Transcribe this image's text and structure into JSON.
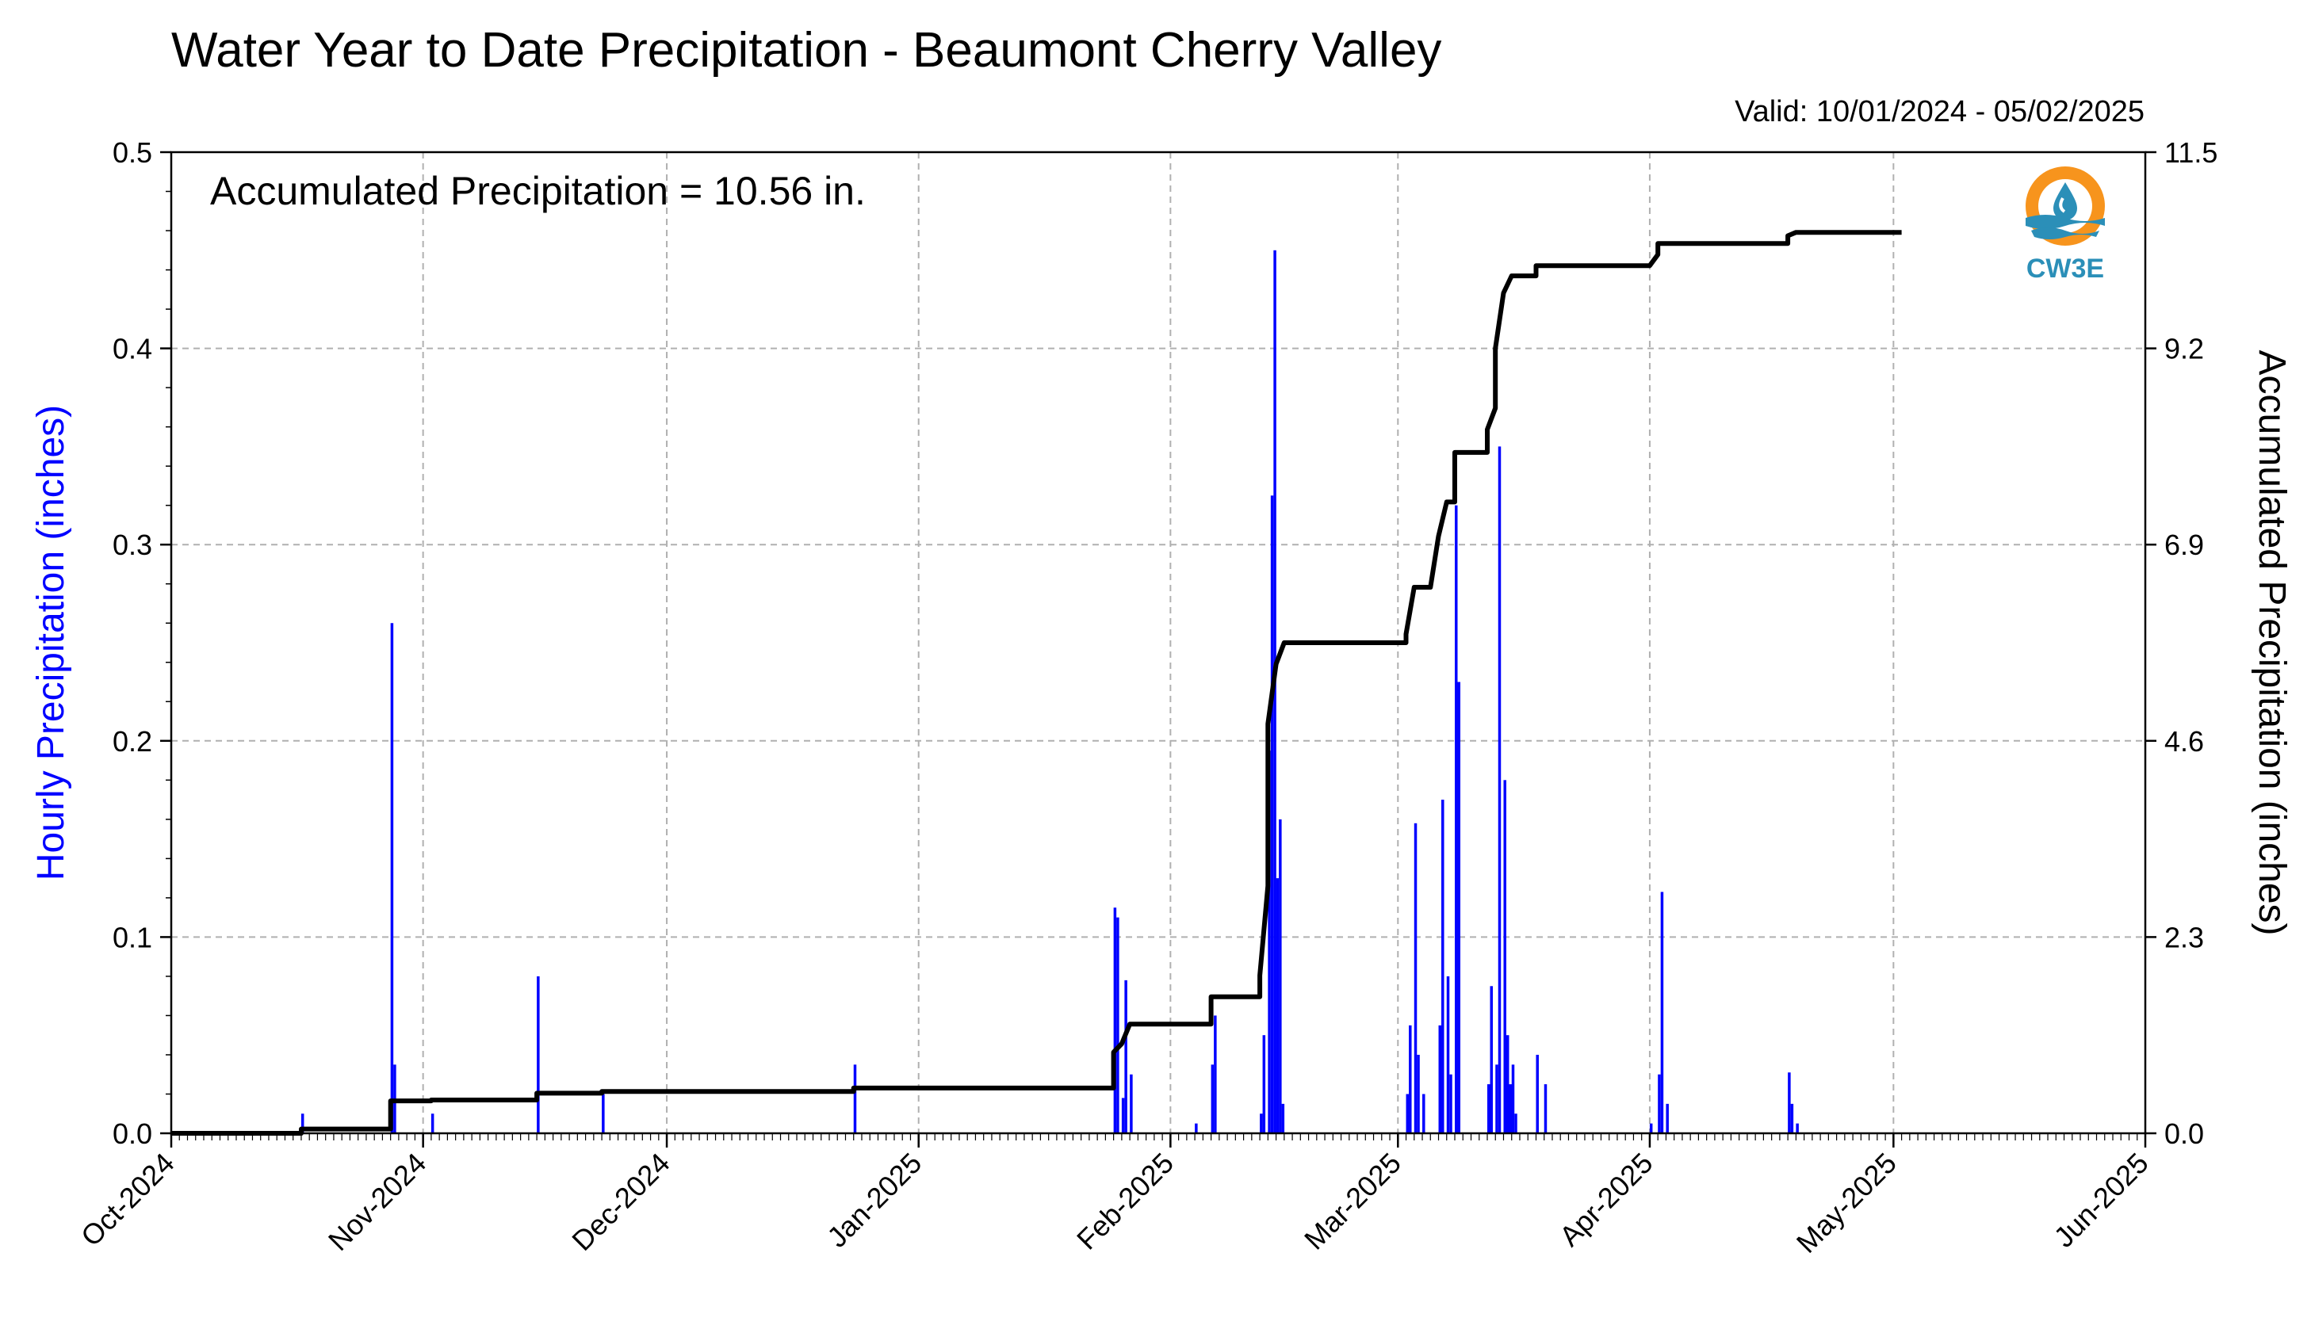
{
  "header": {
    "title": "Water Year to Date Precipitation - Beaumont Cherry Valley",
    "valid": "Valid: 10/01/2024 - 05/02/2025"
  },
  "logo": {
    "text": "CW3E",
    "icon": "droplet-water-logo-icon",
    "colors": {
      "ring": "#f7941d",
      "wave": "#2b8fb8"
    }
  },
  "chart_data": {
    "type": "bar+line",
    "annotation": "Accumulated Precipitation = 10.56 in.",
    "ylabel_left": "Hourly Precipitation (inches)",
    "ylabel_right": "Accumulated Precipitation (inches)",
    "ylim_left": [
      0,
      0.5
    ],
    "ylim_right": [
      0,
      11.5
    ],
    "yticks_left": [
      "0.0",
      "0.1",
      "0.2",
      "0.3",
      "0.4",
      "0.5"
    ],
    "yticks_right": [
      "0.0",
      "2.3",
      "4.6",
      "6.9",
      "9.2",
      "11.5"
    ],
    "xlim": [
      "2024-10-01",
      "2025-06-01"
    ],
    "xticks": [
      {
        "date": "2024-10-01",
        "label": "Oct-2024"
      },
      {
        "date": "2024-11-01",
        "label": "Nov-2024"
      },
      {
        "date": "2024-12-01",
        "label": "Dec-2024"
      },
      {
        "date": "2025-01-01",
        "label": "Jan-2025"
      },
      {
        "date": "2025-02-01",
        "label": "Feb-2025"
      },
      {
        "date": "2025-03-01",
        "label": "Mar-2025"
      },
      {
        "date": "2025-04-01",
        "label": "Apr-2025"
      },
      {
        "date": "2025-05-01",
        "label": "May-2025"
      },
      {
        "date": "2025-06-01",
        "label": "Jun-2025"
      }
    ],
    "grid": true,
    "colors": {
      "hourly": "#0000ff",
      "accumulated": "#000000",
      "grid": "#b0b0b0"
    },
    "series": [
      {
        "name": "Hourly Precipitation",
        "type": "bar",
        "points": [
          [
            "2024-10-17",
            0.01
          ],
          [
            "2024-10-28",
            0.26
          ],
          [
            "2024-10-28",
            0.035
          ],
          [
            "2024-11-02",
            0.01
          ],
          [
            "2024-11-15",
            0.08
          ],
          [
            "2024-11-23",
            0.02
          ],
          [
            "2024-12-24",
            0.035
          ],
          [
            "2025-01-25",
            0.115
          ],
          [
            "2025-01-25",
            0.11
          ],
          [
            "2025-01-26",
            0.018
          ],
          [
            "2025-01-26",
            0.078
          ],
          [
            "2025-01-27",
            0.03
          ],
          [
            "2025-02-04",
            0.005
          ],
          [
            "2025-02-06",
            0.035
          ],
          [
            "2025-02-06",
            0.06
          ],
          [
            "2025-02-12",
            0.01
          ],
          [
            "2025-02-12",
            0.05
          ],
          [
            "2025-02-13",
            0.195
          ],
          [
            "2025-02-13",
            0.325
          ],
          [
            "2025-02-13",
            0.45
          ],
          [
            "2025-02-14",
            0.13
          ],
          [
            "2025-02-14",
            0.16
          ],
          [
            "2025-02-14",
            0.015
          ],
          [
            "2025-03-02",
            0.02
          ],
          [
            "2025-03-02",
            0.055
          ],
          [
            "2025-03-03",
            0.158
          ],
          [
            "2025-03-03",
            0.04
          ],
          [
            "2025-03-04",
            0.02
          ],
          [
            "2025-03-06",
            0.055
          ],
          [
            "2025-03-06",
            0.17
          ],
          [
            "2025-03-07",
            0.08
          ],
          [
            "2025-03-07",
            0.03
          ],
          [
            "2025-03-08",
            0.32
          ],
          [
            "2025-03-08",
            0.23
          ],
          [
            "2025-03-12",
            0.025
          ],
          [
            "2025-03-12",
            0.075
          ],
          [
            "2025-03-13",
            0.035
          ],
          [
            "2025-03-13",
            0.35
          ],
          [
            "2025-03-14",
            0.18
          ],
          [
            "2025-03-14",
            0.05
          ],
          [
            "2025-03-14",
            0.025
          ],
          [
            "2025-03-15",
            0.035
          ],
          [
            "2025-03-15",
            0.01
          ],
          [
            "2025-03-18",
            0.04
          ],
          [
            "2025-03-19",
            0.025
          ],
          [
            "2025-04-01",
            0.005
          ],
          [
            "2025-04-02",
            0.03
          ],
          [
            "2025-04-02",
            0.123
          ],
          [
            "2025-04-03",
            0.015
          ],
          [
            "2025-04-18",
            0.031
          ],
          [
            "2025-04-18",
            0.015
          ],
          [
            "2025-04-19",
            0.005
          ]
        ]
      },
      {
        "name": "Accumulated Precipitation",
        "type": "step-line",
        "points": [
          [
            "2024-10-01",
            0.0
          ],
          [
            "2024-10-17",
            0.0
          ],
          [
            "2024-10-17",
            0.05
          ],
          [
            "2024-10-28",
            0.05
          ],
          [
            "2024-10-28",
            0.38
          ],
          [
            "2024-11-02",
            0.38
          ],
          [
            "2024-11-02",
            0.39
          ],
          [
            "2024-11-15",
            0.39
          ],
          [
            "2024-11-15",
            0.47
          ],
          [
            "2024-11-23",
            0.47
          ],
          [
            "2024-11-23",
            0.49
          ],
          [
            "2024-12-24",
            0.49
          ],
          [
            "2024-12-24",
            0.53
          ],
          [
            "2025-01-25",
            0.53
          ],
          [
            "2025-01-25",
            0.95
          ],
          [
            "2025-01-26",
            1.05
          ],
          [
            "2025-01-27",
            1.28
          ],
          [
            "2025-02-06",
            1.28
          ],
          [
            "2025-02-06",
            1.6
          ],
          [
            "2025-02-12",
            1.6
          ],
          [
            "2025-02-12",
            1.85
          ],
          [
            "2025-02-13",
            2.9
          ],
          [
            "2025-02-13",
            4.8
          ],
          [
            "2025-02-14",
            5.5
          ],
          [
            "2025-02-15",
            5.75
          ],
          [
            "2025-03-02",
            5.75
          ],
          [
            "2025-03-02",
            5.85
          ],
          [
            "2025-03-03",
            6.4
          ],
          [
            "2025-03-05",
            6.4
          ],
          [
            "2025-03-06",
            7.0
          ],
          [
            "2025-03-07",
            7.4
          ],
          [
            "2025-03-08",
            7.4
          ],
          [
            "2025-03-08",
            7.98
          ],
          [
            "2025-03-12",
            7.98
          ],
          [
            "2025-03-12",
            8.25
          ],
          [
            "2025-03-13",
            8.5
          ],
          [
            "2025-03-13",
            9.2
          ],
          [
            "2025-03-14",
            9.85
          ],
          [
            "2025-03-15",
            10.05
          ],
          [
            "2025-03-18",
            10.05
          ],
          [
            "2025-03-18",
            10.17
          ],
          [
            "2025-04-01",
            10.17
          ],
          [
            "2025-04-02",
            10.3
          ],
          [
            "2025-04-02",
            10.43
          ],
          [
            "2025-04-18",
            10.43
          ],
          [
            "2025-04-18",
            10.52
          ],
          [
            "2025-04-19",
            10.56
          ],
          [
            "2025-05-02",
            10.56
          ]
        ]
      }
    ]
  }
}
